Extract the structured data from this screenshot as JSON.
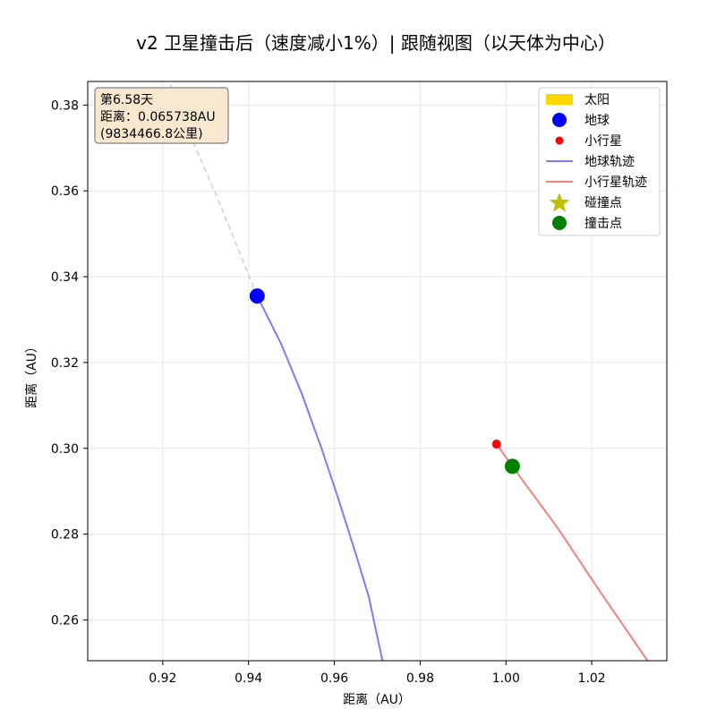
{
  "chart_data": {
    "type": "line",
    "title": "v2 卫星撞击后（速度减小1%）| 跟随视图（以天体为中心）",
    "xlabel": "距离（AU）",
    "ylabel": "距离（AU）",
    "xlim": [
      0.9025,
      1.0375
    ],
    "ylim": [
      0.2505,
      0.3855
    ],
    "x_ticks": [
      0.92,
      0.94,
      0.96,
      0.98,
      1.0,
      1.02
    ],
    "x_tick_labels": [
      "0.92",
      "0.94",
      "0.96",
      "0.98",
      "1.00",
      "1.02"
    ],
    "y_ticks": [
      0.26,
      0.28,
      0.3,
      0.32,
      0.34,
      0.36,
      0.38
    ],
    "y_tick_labels": [
      "0.26",
      "0.28",
      "0.30",
      "0.32",
      "0.34",
      "0.36",
      "0.38"
    ],
    "grid": true,
    "legend_position": "top-right",
    "info_box": {
      "line1": "第6.58天",
      "line2": "距离：0.065738AU",
      "line3": "(9834466.8公里)"
    },
    "legend": [
      {
        "label": "太阳",
        "marker": "rect",
        "color": "#ffd700"
      },
      {
        "label": "地球",
        "marker": "circle-large",
        "color": "#0000ff"
      },
      {
        "label": "小行星",
        "marker": "circle-small",
        "color": "#ff0000"
      },
      {
        "label": "地球轨迹",
        "marker": "line",
        "color": "#7b7bff"
      },
      {
        "label": "小行星轨迹",
        "marker": "line",
        "color": "#f4817d"
      },
      {
        "label": "碰撞点",
        "marker": "star",
        "color": "#bfbf00"
      },
      {
        "label": "撞击点",
        "marker": "circle-large",
        "color": "#008000"
      }
    ],
    "series": [
      {
        "name": "地球轨迹",
        "style": "solid",
        "color": "#7b7bff",
        "points": [
          [
            0.942,
            0.3355
          ],
          [
            0.9475,
            0.3245
          ],
          [
            0.9525,
            0.3125
          ],
          [
            0.957,
            0.3
          ],
          [
            0.961,
            0.288
          ],
          [
            0.9648,
            0.276
          ],
          [
            0.968,
            0.2655
          ],
          [
            0.9712,
            0.2505
          ]
        ]
      },
      {
        "name": "地球轨迹(延伸)",
        "style": "dashed",
        "color": "#c8c8ff",
        "points": [
          [
            0.942,
            0.3355
          ],
          [
            0.9335,
            0.3565
          ],
          [
            0.9255,
            0.375
          ],
          [
            0.9215,
            0.3855
          ]
        ]
      },
      {
        "name": "小行星轨迹",
        "style": "solid",
        "color": "#f4817d",
        "points": [
          [
            0.9978,
            0.301
          ],
          [
            1.0015,
            0.2958
          ],
          [
            1.012,
            0.2815
          ],
          [
            1.022,
            0.2665
          ],
          [
            1.033,
            0.2505
          ]
        ]
      }
    ],
    "markers": [
      {
        "name": "地球",
        "x": 0.942,
        "y": 0.3355,
        "color": "#0000ff",
        "size": "large"
      },
      {
        "name": "小行星",
        "x": 0.9978,
        "y": 0.301,
        "color": "#ff0000",
        "size": "small"
      },
      {
        "name": "撞击点",
        "x": 1.0015,
        "y": 0.2958,
        "color": "#008000",
        "size": "large"
      }
    ]
  }
}
